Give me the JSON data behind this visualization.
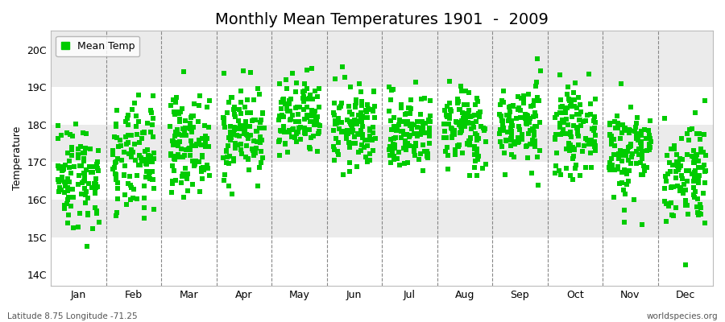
{
  "title": "Monthly Mean Temperatures 1901  -  2009",
  "ylabel": "Temperature",
  "xlabel_labels": [
    "Jan",
    "Feb",
    "Mar",
    "Apr",
    "May",
    "Jun",
    "Jul",
    "Aug",
    "Sep",
    "Oct",
    "Nov",
    "Dec"
  ],
  "ytick_labels": [
    "14C",
    "15C",
    "16C",
    "17C",
    "18C",
    "19C",
    "20C"
  ],
  "ytick_values": [
    14,
    15,
    16,
    17,
    18,
    19,
    20
  ],
  "ylim": [
    13.7,
    20.5
  ],
  "marker_color": "#00cc00",
  "marker_style": "s",
  "marker_size": 4,
  "legend_label": "Mean Temp",
  "bottom_left": "Latitude 8.75 Longitude -71.25",
  "bottom_right": "worldspecies.org",
  "background_color": "#ffffff",
  "alt_band_color": "#ebebeb",
  "grid_color": "#888888",
  "title_fontsize": 14,
  "label_fontsize": 9,
  "tick_fontsize": 9,
  "seed": 42,
  "n_years": 109,
  "month_means": [
    16.65,
    17.0,
    17.5,
    17.8,
    18.1,
    17.9,
    17.8,
    17.9,
    18.0,
    17.85,
    17.3,
    16.75
  ],
  "month_stds": [
    0.72,
    0.75,
    0.62,
    0.62,
    0.55,
    0.55,
    0.52,
    0.55,
    0.55,
    0.55,
    0.65,
    0.72
  ]
}
